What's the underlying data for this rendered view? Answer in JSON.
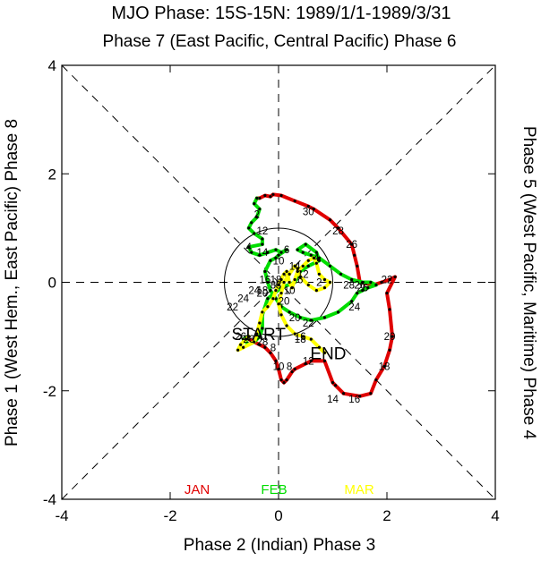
{
  "chart_data": {
    "type": "line",
    "title": "MJO Phase: 15S-15N: 1989/1/1-1989/3/31",
    "top_label": "Phase 7 (East Pacific, Central Pacific) Phase 6",
    "bottom_label": "Phase 2 (Indian) Phase 3",
    "left_label": "Phase 1 (West Hem., East Pacific) Phase 8",
    "right_label": "Phase 5 (West Pacific, Maritime) Phase 4",
    "xlim": [
      -4,
      4
    ],
    "ylim": [
      -4,
      4
    ],
    "xticks": [
      "-4",
      "-2",
      "0",
      "2",
      "4"
    ],
    "yticks": [
      "-4",
      "-2",
      "0",
      "2",
      "4"
    ],
    "start_label": "START",
    "end_label": "END",
    "series": [
      {
        "name": "JAN",
        "color": "#e00000",
        "points": [
          [
            -0.55,
            -1.05
          ],
          [
            -0.45,
            -1.1
          ],
          [
            -0.35,
            -1.15
          ],
          [
            -0.25,
            -1.2
          ],
          [
            -0.15,
            -1.3
          ],
          [
            -0.05,
            -1.45
          ],
          [
            0.0,
            -1.6
          ],
          [
            0.05,
            -1.8
          ],
          [
            0.1,
            -1.85
          ],
          [
            0.15,
            -1.8
          ],
          [
            0.25,
            -1.65
          ],
          [
            0.3,
            -1.6
          ],
          [
            0.5,
            -1.5
          ],
          [
            0.6,
            -1.45
          ],
          [
            0.85,
            -1.45
          ],
          [
            1.0,
            -1.85
          ],
          [
            1.05,
            -1.9
          ],
          [
            1.2,
            -2.05
          ],
          [
            1.5,
            -2.1
          ],
          [
            1.7,
            -2.05
          ],
          [
            1.8,
            -1.8
          ],
          [
            1.95,
            -1.55
          ],
          [
            2.05,
            -1.25
          ],
          [
            2.1,
            -1.0
          ],
          [
            2.05,
            -0.5
          ],
          [
            2.0,
            -0.2
          ],
          [
            2.15,
            0.1
          ],
          [
            2.05,
            0.05
          ],
          [
            1.9,
            0.0
          ],
          [
            1.75,
            -0.05
          ],
          [
            1.5,
            0.0
          ],
          [
            1.45,
            0.3
          ],
          [
            1.4,
            0.5
          ],
          [
            1.35,
            0.7
          ],
          [
            1.1,
            1.0
          ],
          [
            0.95,
            1.15
          ],
          [
            0.65,
            1.35
          ],
          [
            0.55,
            1.4
          ],
          [
            0.3,
            1.5
          ],
          [
            0.05,
            1.6
          ],
          [
            -0.1,
            1.62
          ],
          [
            -0.15,
            1.58
          ],
          [
            -0.25,
            1.6
          ],
          [
            -0.35,
            1.55
          ],
          [
            -0.4,
            1.55
          ]
        ],
        "labels": [
          {
            "x": -0.1,
            "y": -1.2,
            "t": "8"
          },
          {
            "x": 0.2,
            "y": -1.55,
            "t": "8"
          },
          {
            "x": 0.0,
            "y": -1.55,
            "t": "10"
          },
          {
            "x": 0.55,
            "y": -1.45,
            "t": "12"
          },
          {
            "x": 1.0,
            "y": -2.15,
            "t": "14"
          },
          {
            "x": 1.4,
            "y": -2.15,
            "t": "16"
          },
          {
            "x": 1.95,
            "y": -1.55,
            "t": "18"
          },
          {
            "x": 2.05,
            "y": -1.0,
            "t": "20"
          },
          {
            "x": 2.0,
            "y": 0.05,
            "t": "22"
          },
          {
            "x": 1.4,
            "y": -0.45,
            "t": "24"
          },
          {
            "x": 1.5,
            "y": -0.05,
            "t": "26"
          },
          {
            "x": 1.35,
            "y": 0.7,
            "t": "26"
          },
          {
            "x": 1.1,
            "y": 0.95,
            "t": "28"
          },
          {
            "x": 0.55,
            "y": 1.3,
            "t": "30"
          }
        ]
      },
      {
        "name": "FEB",
        "color": "#00dd00",
        "points": [
          [
            -0.4,
            1.55
          ],
          [
            -0.45,
            1.45
          ],
          [
            -0.35,
            1.35
          ],
          [
            -0.4,
            1.2
          ],
          [
            -0.5,
            1.1
          ],
          [
            -0.55,
            1.0
          ],
          [
            -0.45,
            0.9
          ],
          [
            -0.3,
            0.8
          ],
          [
            -0.3,
            0.7
          ],
          [
            -0.55,
            0.65
          ],
          [
            -0.5,
            0.55
          ],
          [
            -0.35,
            0.5
          ],
          [
            -0.2,
            0.55
          ],
          [
            -0.05,
            0.6
          ],
          [
            0.05,
            0.55
          ],
          [
            0.15,
            0.6
          ],
          [
            0.0,
            0.5
          ],
          [
            -0.05,
            0.45
          ],
          [
            -0.15,
            0.4
          ],
          [
            -0.25,
            0.2
          ],
          [
            -0.2,
            0.0
          ],
          [
            -0.15,
            -0.15
          ],
          [
            -0.05,
            -0.3
          ],
          [
            0.05,
            -0.45
          ],
          [
            0.2,
            -0.55
          ],
          [
            0.4,
            -0.65
          ],
          [
            0.6,
            -0.7
          ],
          [
            0.85,
            -0.65
          ],
          [
            1.1,
            -0.55
          ],
          [
            1.35,
            -0.35
          ],
          [
            1.45,
            -0.2
          ],
          [
            1.55,
            -0.15
          ],
          [
            1.65,
            -0.1
          ],
          [
            1.8,
            -0.05
          ],
          [
            1.7,
            0.0
          ],
          [
            1.55,
            0.0
          ],
          [
            1.35,
            0.05
          ],
          [
            1.15,
            0.15
          ],
          [
            0.95,
            0.3
          ],
          [
            0.75,
            0.45
          ],
          [
            0.6,
            0.5
          ],
          [
            0.45,
            0.55
          ],
          [
            0.35,
            0.6
          ],
          [
            0.5,
            0.7
          ],
          [
            0.7,
            0.55
          ],
          [
            0.75,
            0.4
          ],
          [
            0.55,
            0.3
          ],
          [
            0.4,
            0.2
          ],
          [
            0.3,
            0.0
          ],
          [
            0.05,
            -0.1
          ],
          [
            -0.2,
            -0.3
          ],
          [
            -0.3,
            -0.6
          ],
          [
            -0.3,
            -0.85
          ],
          [
            -0.35,
            -1.0
          ],
          [
            -0.45,
            -1.1
          ],
          [
            -0.55,
            -1.15
          ],
          [
            -0.65,
            -1.05
          ],
          [
            -0.55,
            -1.0
          ]
        ],
        "labels": [
          {
            "x": -0.4,
            "y": 1.25,
            "t": "2"
          },
          {
            "x": -0.3,
            "y": 0.95,
            "t": "12"
          },
          {
            "x": -0.55,
            "y": 0.65,
            "t": "4"
          },
          {
            "x": -0.3,
            "y": 0.55,
            "t": "14"
          },
          {
            "x": 0.0,
            "y": 0.4,
            "t": "10"
          },
          {
            "x": 0.15,
            "y": 0.6,
            "t": "6"
          },
          {
            "x": -0.25,
            "y": 0.05,
            "t": "16"
          },
          {
            "x": -0.1,
            "y": -0.05,
            "t": "8"
          },
          {
            "x": 0.1,
            "y": -0.35,
            "t": "20"
          },
          {
            "x": 0.3,
            "y": -0.65,
            "t": "20"
          },
          {
            "x": 0.55,
            "y": -0.75,
            "t": "22"
          },
          {
            "x": 1.55,
            "y": -0.1,
            "t": "26"
          },
          {
            "x": 1.3,
            "y": -0.05,
            "t": "28"
          },
          {
            "x": -0.3,
            "y": -0.15,
            "t": "18"
          }
        ]
      },
      {
        "name": "MAR",
        "color": "#ffff00",
        "points": [
          [
            -0.55,
            -1.0
          ],
          [
            -0.6,
            -1.05
          ],
          [
            -0.7,
            -1.15
          ],
          [
            -0.75,
            -1.25
          ],
          [
            -0.65,
            -1.2
          ],
          [
            -0.45,
            -1.1
          ],
          [
            -0.4,
            -0.95
          ],
          [
            -0.35,
            -0.75
          ],
          [
            -0.3,
            -0.55
          ],
          [
            -0.2,
            -0.45
          ],
          [
            -0.1,
            -0.3
          ],
          [
            -0.05,
            -0.15
          ],
          [
            0.0,
            -0.05
          ],
          [
            0.05,
            0.05
          ],
          [
            0.1,
            0.15
          ],
          [
            0.15,
            0.2
          ],
          [
            0.2,
            0.0
          ],
          [
            0.25,
            -0.1
          ],
          [
            0.3,
            0.05
          ],
          [
            0.35,
            0.2
          ],
          [
            0.45,
            0.3
          ],
          [
            0.55,
            0.4
          ],
          [
            0.65,
            0.45
          ],
          [
            0.7,
            0.35
          ],
          [
            0.75,
            0.15
          ],
          [
            0.85,
            0.05
          ],
          [
            0.95,
            0.0
          ],
          [
            0.85,
            -0.1
          ],
          [
            0.7,
            -0.15
          ],
          [
            0.55,
            -0.05
          ],
          [
            0.4,
            0.1
          ],
          [
            0.35,
            0.25
          ],
          [
            0.3,
            0.3
          ],
          [
            0.2,
            0.15
          ],
          [
            0.1,
            0.0
          ],
          [
            0.05,
            -0.2
          ],
          [
            0.0,
            -0.4
          ],
          [
            0.05,
            -0.6
          ],
          [
            0.15,
            -0.8
          ],
          [
            0.3,
            -0.95
          ],
          [
            0.45,
            -1.0
          ],
          [
            0.6,
            -1.05
          ],
          [
            0.75,
            -1.2
          ],
          [
            0.85,
            -1.3
          ]
        ],
        "labels": [
          {
            "x": -0.85,
            "y": -0.45,
            "t": "22"
          },
          {
            "x": -0.65,
            "y": -0.3,
            "t": "24"
          },
          {
            "x": -0.45,
            "y": -0.15,
            "t": "24"
          },
          {
            "x": -0.3,
            "y": -0.2,
            "t": "20"
          },
          {
            "x": -0.05,
            "y": 0.05,
            "t": "18"
          },
          {
            "x": 0.2,
            "y": -0.15,
            "t": "10"
          },
          {
            "x": 0.3,
            "y": 0.3,
            "t": "14"
          },
          {
            "x": 0.4,
            "y": 0.05,
            "t": "6"
          },
          {
            "x": 0.45,
            "y": 0.15,
            "t": "12"
          },
          {
            "x": 0.7,
            "y": 0.45,
            "t": "4"
          },
          {
            "x": 0.75,
            "y": 0.0,
            "t": "2"
          },
          {
            "x": 0.0,
            "y": -0.05,
            "t": "8"
          },
          {
            "x": 0.4,
            "y": -1.0,
            "t": "16"
          },
          {
            "x": 0.4,
            "y": -1.05,
            "t": "18"
          },
          {
            "x": -0.7,
            "y": -1.0,
            "t": "26"
          },
          {
            "x": -0.55,
            "y": -1.05,
            "t": "26"
          },
          {
            "x": -0.3,
            "y": -1.1,
            "t": "28"
          }
        ]
      }
    ],
    "start_point": [
      -0.45,
      -0.95
    ],
    "end_point": [
      0.85,
      -1.3
    ]
  }
}
